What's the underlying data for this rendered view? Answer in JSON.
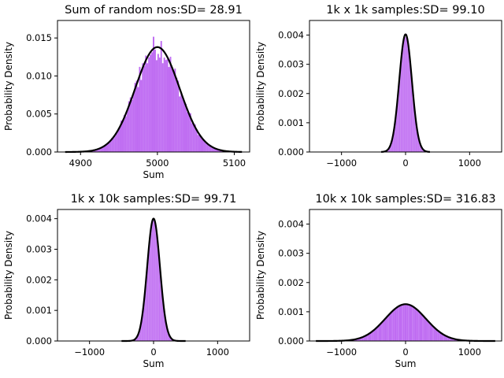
{
  "figure": {
    "background": "#ffffff"
  },
  "style": {
    "bar_color": "#bf6cf2",
    "curve_color": "#000000"
  },
  "chart_data": [
    {
      "type": "bar",
      "title": "Sum of random nos:SD= 28.91",
      "xlabel": "Sum",
      "ylabel": "Probability Density",
      "xlim": [
        4870,
        5120
      ],
      "ylim": [
        0,
        0.0173
      ],
      "xticks": [
        4900,
        5000,
        5100
      ],
      "yticks": [
        0.0,
        0.005,
        0.01,
        0.015
      ],
      "ytick_labels": [
        "0.000",
        "0.005",
        "0.010",
        "0.015"
      ],
      "mean": 5000,
      "sd": 28.91,
      "bar_range": [
        4880,
        5110
      ],
      "bar_width": 2,
      "noise": 0.13,
      "curve_range": [
        4880,
        5110
      ],
      "spikes": [
        [
          5001,
          0.0163
        ],
        [
          5004,
          0.0146
        ],
        [
          4987,
          0.015
        ],
        [
          4976,
          0.0112
        ],
        [
          4991,
          0.0148
        ]
      ]
    },
    {
      "type": "bar",
      "title": "1k x 1k samples:SD= 99.10",
      "xlabel": "",
      "ylabel": "Probability Density",
      "xlim": [
        -1500,
        1500
      ],
      "ylim": [
        0,
        0.0045
      ],
      "xticks": [
        -1000,
        0,
        1000
      ],
      "yticks": [
        0.0,
        0.001,
        0.002,
        0.003,
        0.004
      ],
      "ytick_labels": [
        "0.000",
        "0.001",
        "0.002",
        "0.003",
        "0.004"
      ],
      "mean": 0,
      "sd": 99.1,
      "bar_range": [
        -380,
        380
      ],
      "bar_width": 8,
      "noise": 0.03,
      "curve_range": [
        -380,
        380
      ],
      "spikes": []
    },
    {
      "type": "bar",
      "title": "1k x 10k samples:SD= 99.71",
      "xlabel": "Sum",
      "ylabel": "Probability Density",
      "xlim": [
        -1500,
        1500
      ],
      "ylim": [
        0,
        0.0043
      ],
      "xticks": [
        -1000,
        0,
        1000
      ],
      "yticks": [
        0.0,
        0.001,
        0.002,
        0.003,
        0.004
      ],
      "ytick_labels": [
        "0.000",
        "0.001",
        "0.002",
        "0.003",
        "0.004"
      ],
      "mean": 0,
      "sd": 99.71,
      "bar_range": [
        -500,
        500
      ],
      "bar_width": 8,
      "noise": 0.01,
      "curve_range": [
        -500,
        500
      ],
      "spikes": []
    },
    {
      "type": "bar",
      "title": "10k x 10k samples:SD= 316.83",
      "xlabel": "Sum",
      "ylabel": "Probability Density",
      "xlim": [
        -1500,
        1500
      ],
      "ylim": [
        0,
        0.0045
      ],
      "xticks": [
        -1000,
        0,
        1000
      ],
      "yticks": [
        0.0,
        0.001,
        0.002,
        0.003,
        0.004
      ],
      "ytick_labels": [
        "0.000",
        "0.001",
        "0.002",
        "0.003",
        "0.004"
      ],
      "mean": 0,
      "sd": 316.83,
      "bar_range": [
        -1400,
        1400
      ],
      "bar_width": 20,
      "noise": 0.015,
      "curve_range": [
        -1400,
        1400
      ],
      "spikes": []
    }
  ]
}
